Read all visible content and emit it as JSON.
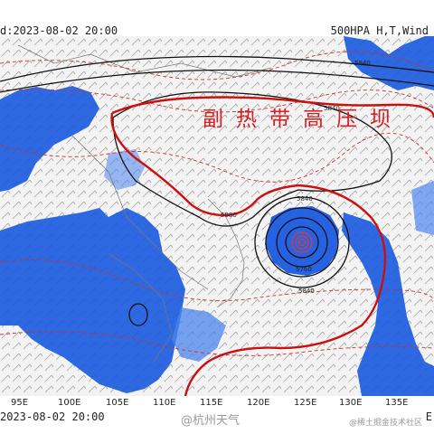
{
  "header": {
    "left_text": "d:2023-08-02 20:00",
    "right_text": "500HPA H,T,Wind"
  },
  "map": {
    "annotation": "副热带高压坝",
    "contour_labels": [
      "5840",
      "5840",
      "5840",
      "5760",
      "5840",
      "5880"
    ],
    "colors": {
      "precip": "#1a5adf",
      "precip_light": "#4b84ef",
      "subtropical_high": "#cc1010",
      "height_contour": "#111111",
      "temperature": "#cc3030",
      "wind": "#444444",
      "border": "#777777",
      "background": "#f3f3f3"
    }
  },
  "footer": {
    "lon_labels": [
      "95E",
      "100E",
      "105E",
      "110E",
      "115E",
      "120E",
      "125E",
      "130E",
      "135E"
    ],
    "left_text": "2023-08-02 20:00",
    "right_text": "E",
    "watermark_main": "@杭州天气",
    "watermark_sub": "@稀土掘金技术社区"
  }
}
